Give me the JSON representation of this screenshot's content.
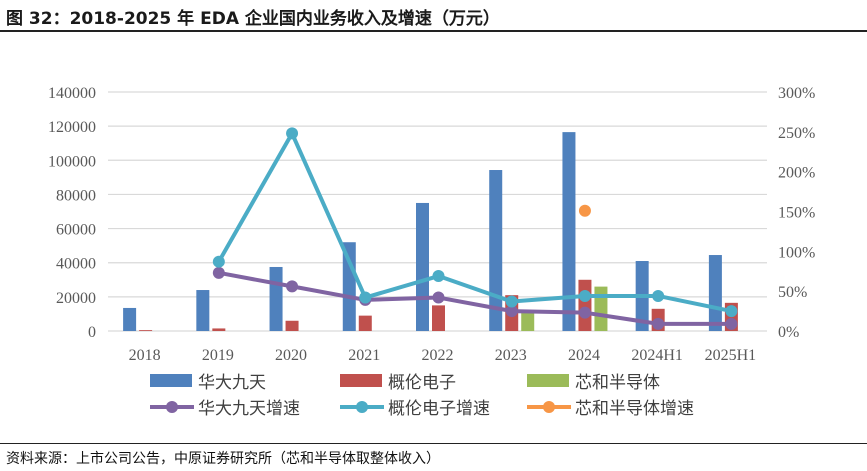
{
  "title": "图 32：2018-2025 年 EDA 企业国内业务收入及增速（万元）",
  "source": "资料来源：上市公司公告，中原证券研究所（芯和半导体取整体收入）",
  "chart_data": {
    "type": "bar+line",
    "categories": [
      "2018",
      "2019",
      "2020",
      "2021",
      "2022",
      "2023",
      "2024",
      "2024H1",
      "2025H1"
    ],
    "y_left": {
      "range": [
        0,
        140000
      ],
      "ticks": [
        "0",
        "20000",
        "40000",
        "60000",
        "80000",
        "100000",
        "120000",
        "140000"
      ]
    },
    "y_right": {
      "range": [
        0,
        3
      ],
      "ticks": [
        "0%",
        "50%",
        "100%",
        "150%",
        "200%",
        "250%",
        "300%"
      ]
    },
    "bars": [
      {
        "name": "华大九天",
        "color": "#4f81bd",
        "values": [
          13500,
          24000,
          37500,
          52000,
          75000,
          94300,
          116500,
          41000,
          44500
        ]
      },
      {
        "name": "概伦电子",
        "color": "#c0504d",
        "values": [
          500,
          1500,
          6000,
          9000,
          15000,
          21000,
          30000,
          13000,
          16500
        ]
      },
      {
        "name": "芯和半导体",
        "color": "#9bbb59",
        "values": [
          null,
          null,
          null,
          null,
          null,
          11000,
          26000,
          null,
          null
        ]
      }
    ],
    "lines": [
      {
        "name": "华大九天增速",
        "color": "#8064a2",
        "values": [
          null,
          0.73,
          0.56,
          0.39,
          0.42,
          0.25,
          0.23,
          0.09,
          0.09
        ]
      },
      {
        "name": "概伦电子增速",
        "color": "#4bacc6",
        "values": [
          null,
          0.87,
          2.48,
          0.42,
          0.69,
          0.37,
          0.44,
          0.44,
          0.25
        ]
      },
      {
        "name": "芯和半导体增速",
        "color": "#f79646",
        "values": [
          null,
          null,
          null,
          null,
          null,
          null,
          1.51,
          null,
          null
        ]
      }
    ],
    "legend": "bottom",
    "grid": true
  }
}
